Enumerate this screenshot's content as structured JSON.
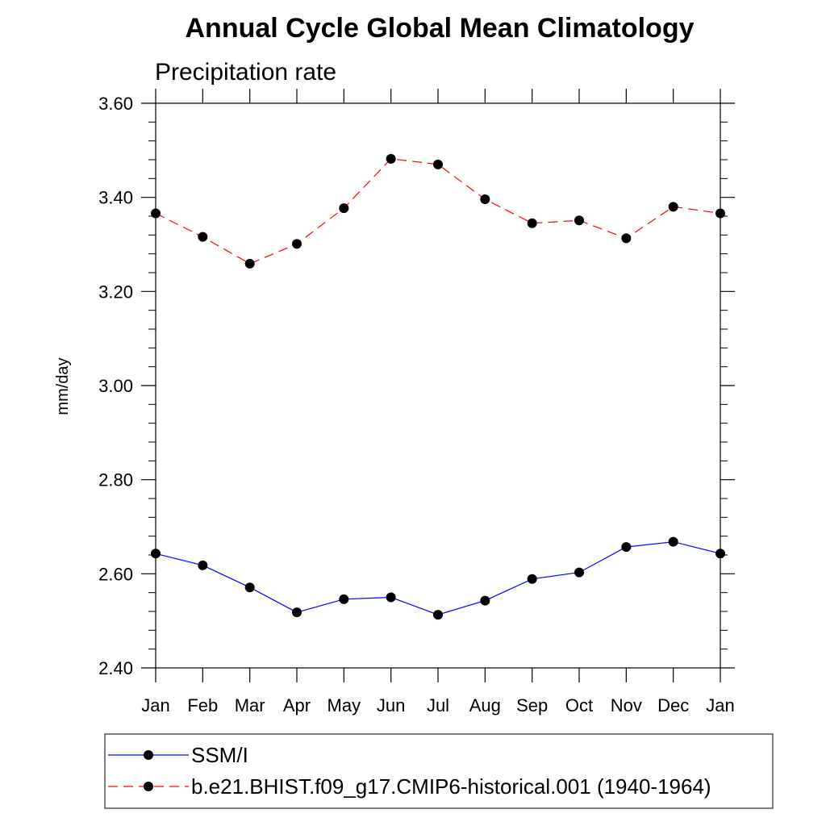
{
  "chart_data": {
    "type": "line",
    "title": "Annual Cycle Global Mean Climatology",
    "subtitle": "Precipitation rate",
    "ylabel": "mm/day",
    "xlabel": "",
    "categories": [
      "Jan",
      "Feb",
      "Mar",
      "Apr",
      "May",
      "Jun",
      "Jul",
      "Aug",
      "Sep",
      "Oct",
      "Nov",
      "Dec",
      "Jan"
    ],
    "ylim": [
      2.4,
      3.6
    ],
    "yticks": [
      "2.40",
      "2.60",
      "2.80",
      "3.00",
      "3.20",
      "3.40",
      "3.60"
    ],
    "ytick_values": [
      2.4,
      2.6,
      2.8,
      3.0,
      3.2,
      3.4,
      3.6
    ],
    "series": [
      {
        "name": "SSM/I",
        "color": "#0000ff",
        "dash": "solid",
        "values": [
          2.643,
          2.618,
          2.571,
          2.518,
          2.546,
          2.55,
          2.513,
          2.543,
          2.589,
          2.603,
          2.657,
          2.668,
          2.643
        ]
      },
      {
        "name": "b.e21.BHIST.f09_g17.CMIP6-historical.001 (1940-1964)",
        "color": "#ff0000",
        "dash": "dashed",
        "values": [
          3.366,
          3.316,
          3.259,
          3.301,
          3.377,
          3.482,
          3.47,
          3.396,
          3.345,
          3.351,
          3.313,
          3.38,
          3.366
        ]
      }
    ],
    "legend_position": "bottom"
  }
}
